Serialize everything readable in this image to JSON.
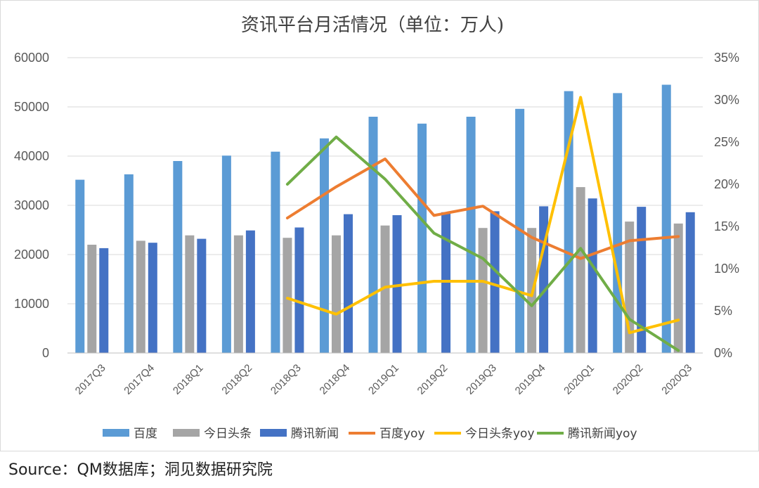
{
  "source_text": "Source：QM数据库；洞见数据研究院",
  "colors": {
    "baidu": "#5b9bd5",
    "toutiao": "#a5a5a5",
    "tencent": "#4472c4",
    "baidu_yoy": "#ed7d31",
    "toutiao_yoy": "#ffc000",
    "tencent_yoy": "#70ad47",
    "axis_text": "#595959",
    "grid": "#d9d9d9"
  },
  "chart_data": {
    "type": "bar",
    "title": "资讯平台月活情况（单位：万人)",
    "categories": [
      "2017Q3",
      "2017Q4",
      "2018Q1",
      "2018Q2",
      "2018Q3",
      "2018Q4",
      "2019Q1",
      "2019Q2",
      "2019Q3",
      "2019Q4",
      "2020Q1",
      "2020Q2",
      "2020Q3"
    ],
    "y_left_ticks": [
      "0",
      "10000",
      "20000",
      "30000",
      "40000",
      "50000",
      "60000"
    ],
    "y_right_ticks": [
      "0%",
      "5%",
      "10%",
      "15%",
      "20%",
      "25%",
      "30%",
      "35%"
    ],
    "ylim_left": [
      0,
      60000
    ],
    "ylim_right": [
      0,
      0.35
    ],
    "grid": true,
    "legend_position": "bottom",
    "bar_series": [
      {
        "name": "百度",
        "color_key": "baidu",
        "values": [
          35200,
          36300,
          39000,
          40100,
          40900,
          43600,
          48000,
          46600,
          48000,
          49600,
          53200,
          52800,
          54500
        ]
      },
      {
        "name": "今日头条",
        "color_key": "toutiao",
        "values": [
          22000,
          22800,
          23900,
          23900,
          23400,
          23900,
          25900,
          null,
          25400,
          25400,
          33700,
          26700,
          26300
        ]
      },
      {
        "name": "腾讯新闻",
        "color_key": "tencent",
        "values": [
          21300,
          22400,
          23200,
          24900,
          25500,
          28200,
          28000,
          28600,
          28800,
          29800,
          31400,
          29700,
          28600
        ]
      }
    ],
    "line_series": [
      {
        "name": "百度yoy",
        "color_key": "baidu_yoy",
        "values": [
          null,
          null,
          null,
          null,
          0.16,
          0.197,
          0.23,
          0.163,
          0.174,
          0.137,
          0.112,
          0.133,
          0.138
        ]
      },
      {
        "name": "今日头条yoy",
        "color_key": "toutiao_yoy",
        "values": [
          null,
          null,
          null,
          null,
          0.065,
          0.046,
          0.078,
          0.085,
          0.085,
          0.068,
          0.303,
          0.024,
          0.039
        ]
      },
      {
        "name": "腾讯新闻yoy",
        "color_key": "tencent_yoy",
        "values": [
          null,
          null,
          null,
          null,
          0.2,
          0.256,
          0.206,
          0.142,
          0.112,
          0.056,
          0.124,
          0.04,
          0.003
        ]
      }
    ]
  }
}
